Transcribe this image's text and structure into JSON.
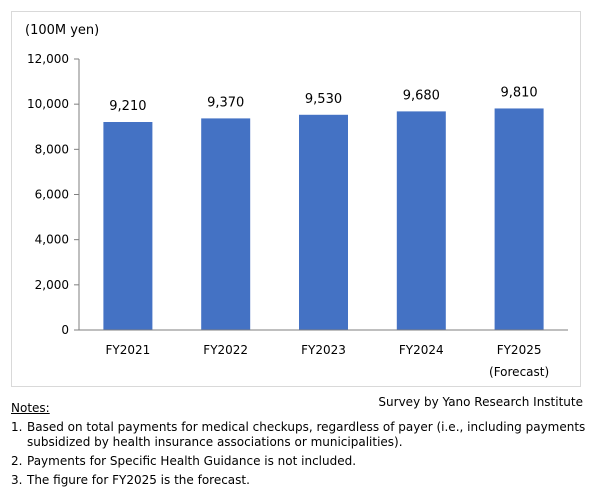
{
  "chart_data": {
    "type": "bar",
    "unit_label": "(100M yen)",
    "categories": [
      "FY2021",
      "FY2022",
      "FY2023",
      "FY2024",
      "FY2025"
    ],
    "category_sublabels": [
      "",
      "",
      "",
      "",
      "(Forecast)"
    ],
    "values": [
      9210,
      9370,
      9530,
      9680,
      9810
    ],
    "value_labels": [
      "9,210",
      "9,370",
      "9,530",
      "9,680",
      "9,810"
    ],
    "ylim": [
      0,
      12000
    ],
    "yticks": [
      0,
      2000,
      4000,
      6000,
      8000,
      10000,
      12000
    ],
    "ytick_labels": [
      "0",
      "2,000",
      "4,000",
      "6,000",
      "8,000",
      "10,000",
      "12,000"
    ],
    "grid": false,
    "legend": "none",
    "bar_color": "#4472c4"
  },
  "source": "Survey by Yano Research Institute",
  "notes": {
    "heading": "Notes:",
    "items": [
      {
        "num": "1.",
        "text": "Based on total payments for medical checkups, regardless of payer (i.e., including payments subsidized by health insurance associations or municipalities)."
      },
      {
        "num": "2.",
        "text": "Payments for Specific Health Guidance is not included."
      },
      {
        "num": "3.",
        "text": "The figure for FY2025 is the forecast."
      }
    ]
  }
}
